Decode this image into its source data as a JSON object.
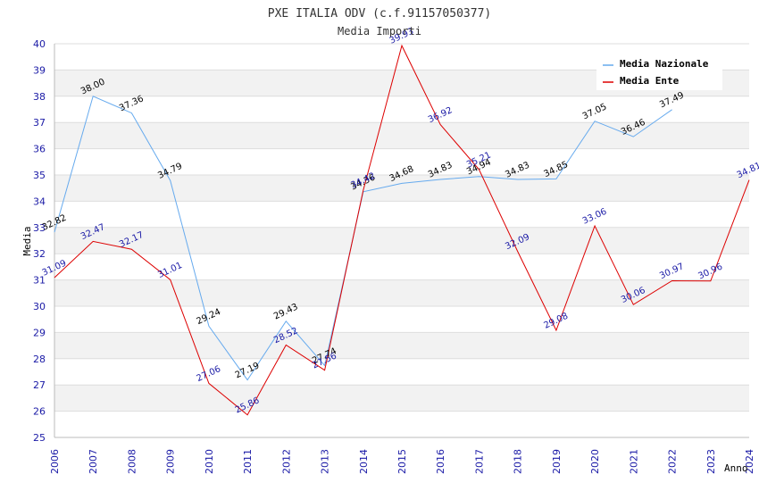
{
  "chart_data": {
    "type": "line",
    "title": "PXE ITALIA ODV (c.f.91157050377)",
    "subtitle": "Media Importi",
    "xlabel": "Anno",
    "ylabel": "Media",
    "ylim": [
      25,
      40
    ],
    "yticks": [
      "25",
      "26",
      "27",
      "28",
      "29",
      "30",
      "31",
      "32",
      "33",
      "34",
      "35",
      "36",
      "37",
      "38",
      "39",
      "40"
    ],
    "categories": [
      "2006",
      "2007",
      "2008",
      "2009",
      "2010",
      "2011",
      "2012",
      "2013",
      "2014",
      "2015",
      "2016",
      "2017",
      "2018",
      "2019",
      "2020",
      "2021",
      "2022",
      "2023",
      "2024"
    ],
    "legend_position": "top-right",
    "grid": true,
    "series": [
      {
        "name": "Media Nazionale",
        "color": "#66aaee",
        "label_color": "#000000",
        "values": [
          32.82,
          38.0,
          37.36,
          34.79,
          29.24,
          27.19,
          29.43,
          27.74,
          34.36,
          34.68,
          34.83,
          34.94,
          34.83,
          34.85,
          37.05,
          36.46,
          37.49,
          null,
          null
        ],
        "labels": [
          "32.82",
          "38.00",
          "37.36",
          "34.79",
          "29.24",
          "27.19",
          "29.43",
          "27.74",
          "34.36",
          "34.68",
          "34.83",
          "34.94",
          "34.83",
          "34.85",
          "37.05",
          "36.46",
          "37.49",
          "",
          ""
        ]
      },
      {
        "name": "Media Ente",
        "color": "#dd0000",
        "label_color": "#1a1aa6",
        "values": [
          31.09,
          32.47,
          32.17,
          31.01,
          27.06,
          25.86,
          28.52,
          27.56,
          34.42,
          39.93,
          36.92,
          35.21,
          32.09,
          29.08,
          33.06,
          30.06,
          30.97,
          30.96,
          34.81
        ],
        "labels": [
          "31.09",
          "32.47",
          "32.17",
          "31.01",
          "27.06",
          "25.86",
          "28.52",
          "27.56",
          "34.42",
          "39.93",
          "36.92",
          "35.21",
          "32.09",
          "29.08",
          "33.06",
          "30.06",
          "30.97",
          "30.96",
          "34.81"
        ]
      }
    ]
  }
}
